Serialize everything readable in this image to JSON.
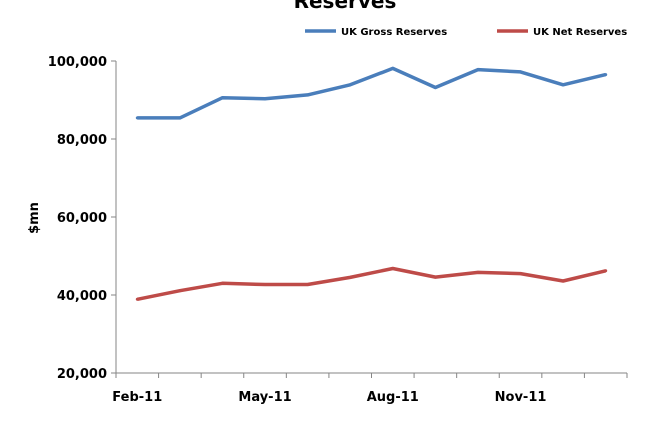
{
  "colors": {
    "gross": "#4a7ebb",
    "net": "#be4b48",
    "axis": "#868686"
  },
  "chart_data": {
    "type": "line",
    "title": "Reserves",
    "xlabel": "",
    "ylabel": "$mn",
    "x": [
      "Feb-11",
      "Mar-11",
      "Apr-11",
      "May-11",
      "Jun-11",
      "Jul-11",
      "Aug-11",
      "Sep-11",
      "Oct-11",
      "Nov-11",
      "Dec-11",
      "Jan-12"
    ],
    "x_tick_labels": [
      "Feb-11",
      "May-11",
      "Aug-11",
      "Nov-11"
    ],
    "y_tick_labels": [
      "20,000",
      "40,000",
      "60,000",
      "80,000",
      "100,000"
    ],
    "ylim": [
      20000,
      100000
    ],
    "grid": false,
    "legend_position": "top-right",
    "series": [
      {
        "name": "UK Gross Reserves",
        "values": [
          85400,
          85400,
          90600,
          90300,
          91300,
          93900,
          98100,
          93200,
          97800,
          97200,
          93900,
          96500
        ]
      },
      {
        "name": "UK Net Reserves",
        "values": [
          38900,
          41100,
          43000,
          42700,
          42700,
          44500,
          46800,
          44600,
          45800,
          45500,
          43600,
          46200
        ]
      }
    ]
  }
}
